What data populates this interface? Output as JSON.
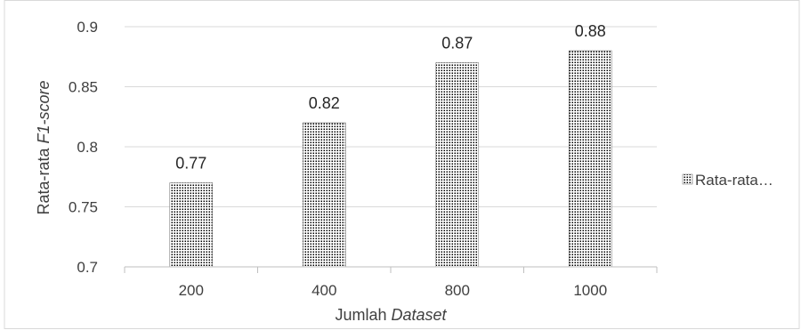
{
  "chart_data": {
    "type": "bar",
    "categories": [
      "200",
      "400",
      "800",
      "1000"
    ],
    "series": [
      {
        "values": [
          0.77,
          0.82,
          0.87,
          0.88
        ]
      }
    ],
    "data_labels": [
      "0.77",
      "0.82",
      "0.87",
      "0.88"
    ],
    "ylim": [
      0.7,
      0.9
    ],
    "yticks": [
      0.7,
      0.75,
      0.8,
      0.85,
      0.9
    ],
    "ytick_labels": [
      "0.7",
      "0.75",
      "0.8",
      "0.85",
      "0.9"
    ],
    "xlabel": {
      "plain": "Jumlah ",
      "italic": "Dataset"
    },
    "ylabel": {
      "plain": "Rata-rata ",
      "italic": "F1-score"
    },
    "legend": {
      "label": "Rata-rata…",
      "position": "right"
    },
    "grid": "horizontal",
    "colors": {
      "gridline": "#d9d9d9",
      "axis": "#bfbfbf",
      "bar_dots": "#000000",
      "bar_outline": "#7f7f7f",
      "text": "#404040"
    }
  }
}
